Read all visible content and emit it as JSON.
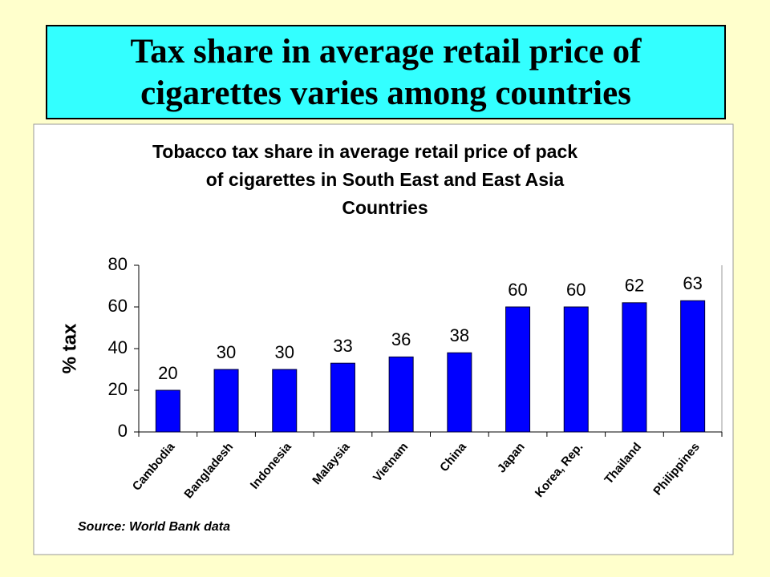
{
  "header": {
    "title": [
      "Tax share in average retail price of",
      "cigarettes varies among countries"
    ]
  },
  "chart_data": {
    "type": "bar",
    "title": [
      "Tobacco tax share in average retail price of pack",
      "of cigarettes in South East and East Asia",
      "Countries"
    ],
    "y_label": "% tax",
    "source": "Source: World Bank data",
    "categories": [
      "Cambodia",
      "Bangladesh",
      "Indonesia",
      "Malaysia",
      "Vietnam",
      "China",
      "Japan",
      "Korea, Rep.",
      "Thailand",
      "Philippines"
    ],
    "values": [
      20,
      30,
      30,
      33,
      36,
      38,
      60,
      60,
      62,
      63
    ],
    "color": "#0000ff",
    "ylim": [
      0,
      80
    ],
    "yticks": [
      0,
      20,
      40,
      60,
      80
    ],
    "grid": false
  }
}
